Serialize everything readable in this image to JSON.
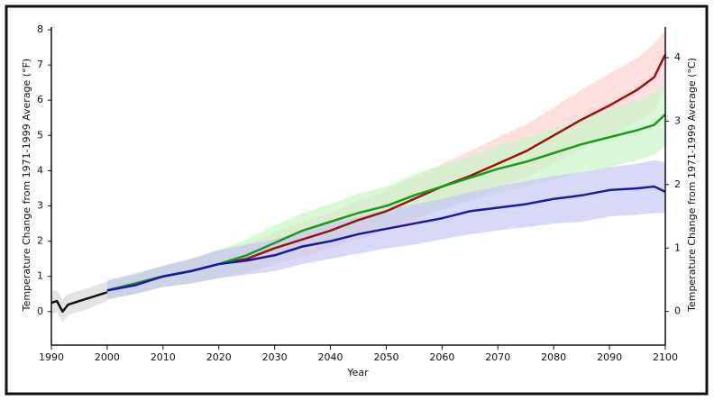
{
  "chart_data": {
    "type": "line",
    "x_label": "Year",
    "y_label": "Temperature Change from 1971-1999 Average (°F)",
    "y2_label": "Temperature Change from 1971-1999 Average (°C)",
    "xlim": [
      1990,
      2100
    ],
    "xticks": [
      1990,
      2000,
      2010,
      2020,
      2030,
      2040,
      2050,
      2060,
      2070,
      2080,
      2090,
      2100
    ],
    "ylim": [
      -0.95,
      8
    ],
    "yticks": [
      0,
      1,
      2,
      3,
      4,
      5,
      6,
      7,
      8
    ],
    "y2lim": [
      -0.53,
      4.44
    ],
    "y2ticks": [
      0,
      1,
      2,
      3,
      4
    ],
    "series": [
      {
        "color": "#111111",
        "band_color": "#d8d8d8",
        "x": [
          1990,
          1991,
          1992,
          1993,
          1995,
          1997,
          2000
        ],
        "values": [
          0.25,
          0.3,
          0.0,
          0.2,
          0.3,
          0.4,
          0.55
        ],
        "lower": [
          -0.1,
          0,
          -0.3,
          -0.1,
          0,
          0.1,
          0.3
        ],
        "upper": [
          0.6,
          0.6,
          0.35,
          0.5,
          0.6,
          0.7,
          0.85
        ]
      },
      {
        "color": "#a01010",
        "band_color": "#ffd0d0",
        "x": [
          2000,
          2005,
          2010,
          2015,
          2020,
          2025,
          2030,
          2035,
          2040,
          2045,
          2050,
          2055,
          2060,
          2065,
          2070,
          2075,
          2080,
          2085,
          2090,
          2095,
          2098,
          2100
        ],
        "values": [
          0.6,
          0.8,
          1.0,
          1.15,
          1.35,
          1.5,
          1.8,
          2.05,
          2.3,
          2.6,
          2.85,
          3.2,
          3.55,
          3.85,
          4.2,
          4.55,
          5.0,
          5.45,
          5.85,
          6.3,
          6.65,
          7.3
        ],
        "lower": [
          0.35,
          0.5,
          0.7,
          0.8,
          0.95,
          1.1,
          1.35,
          1.55,
          1.8,
          2.05,
          2.3,
          2.6,
          2.9,
          3.2,
          3.5,
          3.8,
          4.2,
          4.6,
          5.0,
          5.4,
          5.7,
          6.4
        ],
        "upper": [
          0.85,
          1.1,
          1.3,
          1.5,
          1.75,
          1.9,
          2.25,
          2.55,
          2.8,
          3.15,
          3.45,
          3.8,
          4.2,
          4.55,
          4.95,
          5.3,
          5.8,
          6.3,
          6.75,
          7.2,
          7.6,
          8.0
        ]
      },
      {
        "color": "#1a9a1a",
        "band_color": "#c8f5c8",
        "x": [
          2000,
          2005,
          2010,
          2015,
          2020,
          2025,
          2030,
          2035,
          2040,
          2045,
          2050,
          2055,
          2060,
          2065,
          2070,
          2075,
          2080,
          2085,
          2090,
          2095,
          2098,
          2100
        ],
        "values": [
          0.6,
          0.8,
          1.0,
          1.15,
          1.35,
          1.6,
          1.95,
          2.3,
          2.55,
          2.8,
          3.0,
          3.3,
          3.55,
          3.8,
          4.05,
          4.25,
          4.5,
          4.75,
          4.95,
          5.15,
          5.3,
          5.6
        ],
        "lower": [
          0.35,
          0.5,
          0.7,
          0.8,
          0.95,
          1.15,
          1.5,
          1.8,
          2.05,
          2.25,
          2.45,
          2.7,
          2.9,
          3.15,
          3.35,
          3.55,
          3.75,
          3.95,
          4.1,
          4.3,
          4.45,
          4.7
        ],
        "upper": [
          0.85,
          1.1,
          1.3,
          1.5,
          1.75,
          2.05,
          2.45,
          2.8,
          3.05,
          3.35,
          3.55,
          3.9,
          4.15,
          4.4,
          4.7,
          4.95,
          5.2,
          5.5,
          5.75,
          6.0,
          6.2,
          6.5
        ]
      },
      {
        "color": "#1a1aa0",
        "band_color": "#c8c8f5",
        "x": [
          2000,
          2005,
          2010,
          2015,
          2020,
          2025,
          2030,
          2035,
          2040,
          2045,
          2050,
          2055,
          2060,
          2065,
          2070,
          2075,
          2080,
          2085,
          2090,
          2095,
          2098,
          2100
        ],
        "values": [
          0.6,
          0.75,
          1.0,
          1.15,
          1.35,
          1.45,
          1.6,
          1.85,
          2.0,
          2.2,
          2.35,
          2.5,
          2.65,
          2.85,
          2.95,
          3.05,
          3.2,
          3.3,
          3.45,
          3.5,
          3.55,
          3.4
        ],
        "lower": [
          0.35,
          0.5,
          0.7,
          0.8,
          0.95,
          1.05,
          1.15,
          1.35,
          1.5,
          1.65,
          1.8,
          1.9,
          2.05,
          2.2,
          2.3,
          2.4,
          2.5,
          2.55,
          2.7,
          2.75,
          2.8,
          2.8
        ],
        "upper": [
          0.9,
          1.05,
          1.3,
          1.5,
          1.75,
          1.9,
          2.05,
          2.3,
          2.5,
          2.7,
          2.9,
          3.05,
          3.2,
          3.4,
          3.55,
          3.7,
          3.85,
          3.95,
          4.1,
          4.2,
          4.3,
          4.25
        ]
      }
    ]
  }
}
